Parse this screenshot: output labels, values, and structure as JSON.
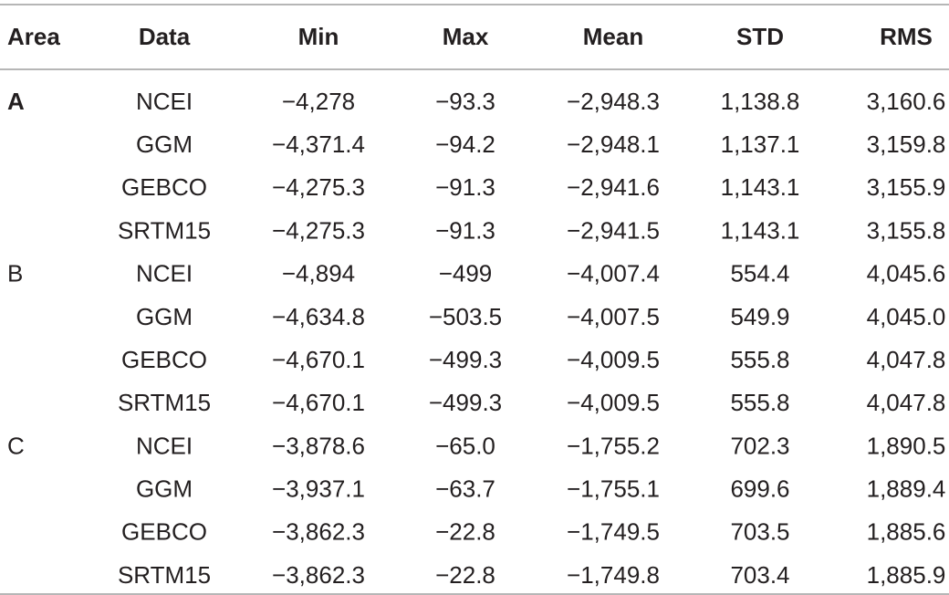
{
  "table": {
    "header": [
      "Area",
      "Data",
      "Min",
      "Max",
      "Mean",
      "STD",
      "RMS"
    ],
    "groups": [
      {
        "area": "A",
        "rows": [
          [
            "NCEI",
            "−4,278",
            "−93.3",
            "−2,948.3",
            "1,138.8",
            "3,160.6"
          ],
          [
            "GGM",
            "−4,371.4",
            "−94.2",
            "−2,948.1",
            "1,137.1",
            "3,159.8"
          ],
          [
            "GEBCO",
            "−4,275.3",
            "−91.3",
            "−2,941.6",
            "1,143.1",
            "3,155.9"
          ],
          [
            "SRTM15",
            "−4,275.3",
            "−91.3",
            "−2,941.5",
            "1,143.1",
            "3,155.8"
          ]
        ]
      },
      {
        "area": "B",
        "rows": [
          [
            "NCEI",
            "−4,894",
            "−499",
            "−4,007.4",
            "554.4",
            "4,045.6"
          ],
          [
            "GGM",
            "−4,634.8",
            "−503.5",
            "−4,007.5",
            "549.9",
            "4,045.0"
          ],
          [
            "GEBCO",
            "−4,670.1",
            "−499.3",
            "−4,009.5",
            "555.8",
            "4,047.8"
          ],
          [
            "SRTM15",
            "−4,670.1",
            "−499.3",
            "−4,009.5",
            "555.8",
            "4,047.8"
          ]
        ]
      },
      {
        "area": "C",
        "rows": [
          [
            "NCEI",
            "−3,878.6",
            "−65.0",
            "−1,755.2",
            "702.3",
            "1,890.5"
          ],
          [
            "GGM",
            "−3,937.1",
            "−63.7",
            "−1,755.1",
            "699.6",
            "1,889.4"
          ],
          [
            "GEBCO",
            "−3,862.3",
            "−22.8",
            "−1,749.5",
            "703.5",
            "1,885.6"
          ],
          [
            "SRTM15",
            "−3,862.3",
            "−22.8",
            "−1,749.8",
            "703.4",
            "1,885.9"
          ]
        ]
      }
    ]
  }
}
